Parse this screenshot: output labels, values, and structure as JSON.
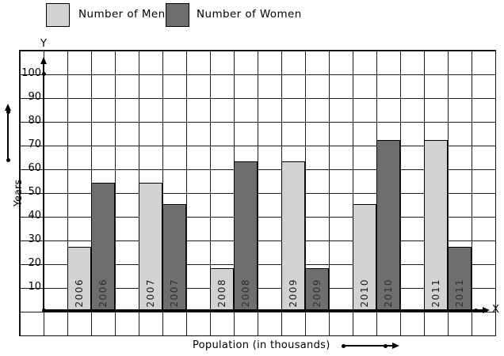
{
  "legend": {
    "men_label": "Number of Men",
    "women_label": "Number of Women"
  },
  "axes": {
    "y_letter": "Y",
    "x_letter": "X",
    "y_axis_title": "Years",
    "x_axis_title": "Population (in thousands)",
    "y_ticks": [
      100,
      90,
      80,
      70,
      60,
      50,
      40,
      30,
      20,
      10
    ]
  },
  "colors": {
    "men_bar": "#d2d2d2",
    "women_bar": "#6e6e6e",
    "grid_line": "#1c1c1c",
    "axis": "#000000",
    "background": "#ffffff",
    "year_label_on_light": "#1a1a1a",
    "year_label_on_dark": "#2f2f2f"
  },
  "chart_data": {
    "type": "bar",
    "categories": [
      "2006",
      "2007",
      "2008",
      "2009",
      "2010",
      "2011"
    ],
    "series": [
      {
        "name": "Number of Men",
        "values": [
          27,
          54,
          18,
          63,
          45,
          72
        ],
        "color": "#d2d2d2"
      },
      {
        "name": "Number of Women",
        "values": [
          54,
          45,
          63,
          18,
          72,
          27
        ],
        "color": "#6e6e6e"
      }
    ],
    "title": "",
    "xlabel": "Population (in thousands)",
    "ylabel": "Years",
    "ylim": [
      0,
      110
    ],
    "y_tick_step": 10,
    "grid": true,
    "legend_position": "top-left"
  }
}
